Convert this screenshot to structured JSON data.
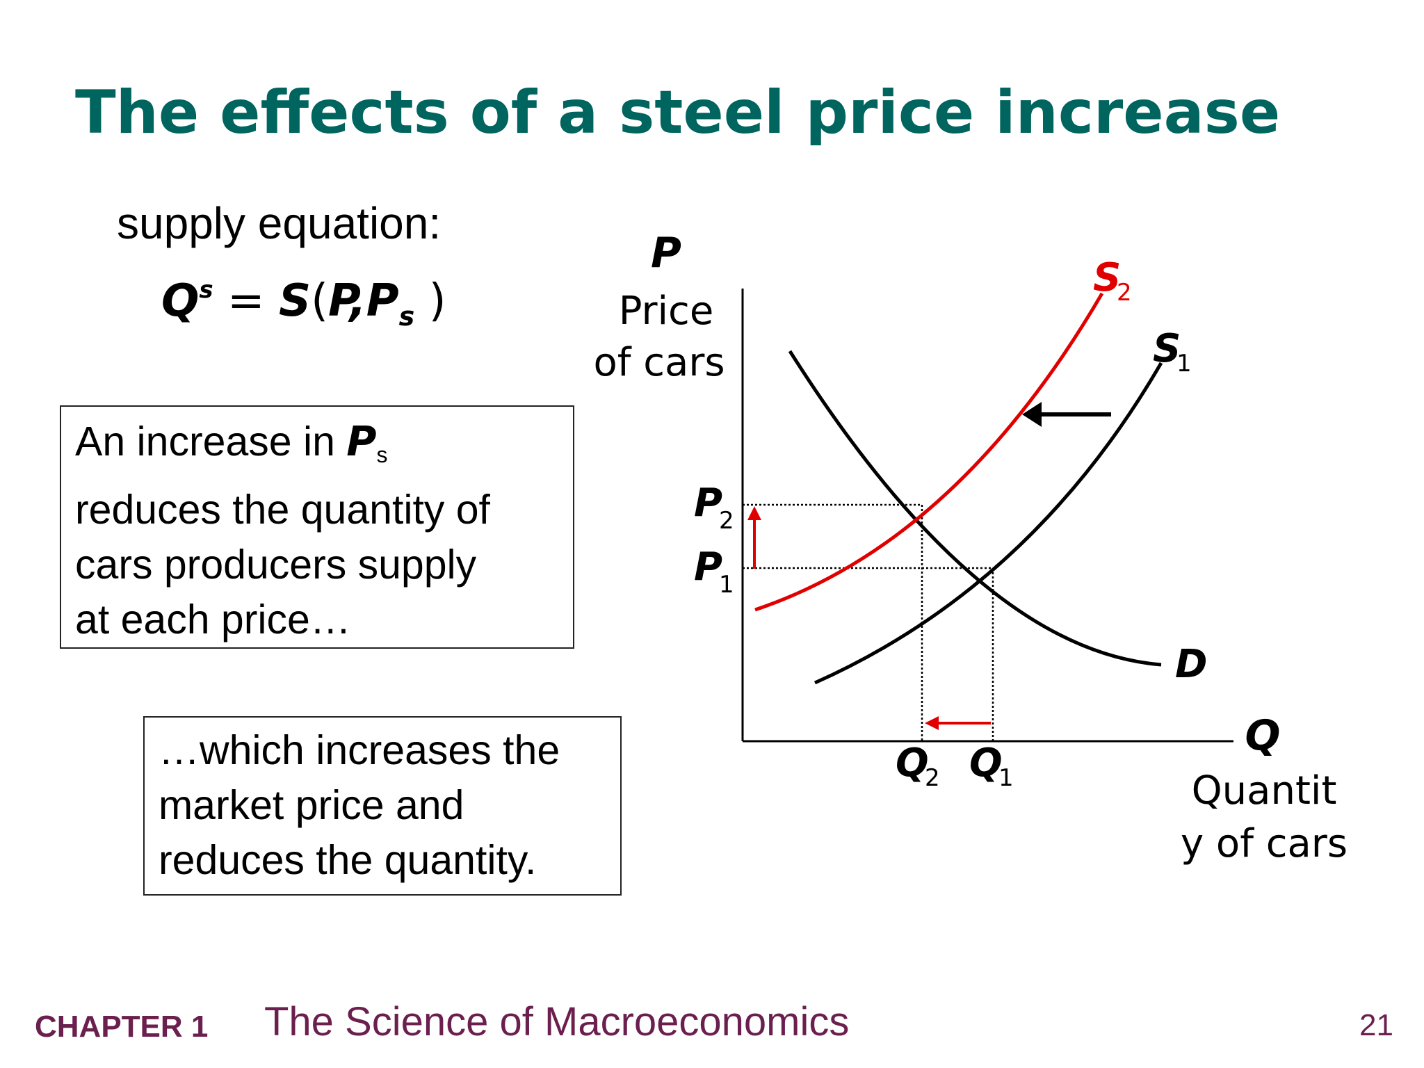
{
  "slide": {
    "title": "The effects of a steel price increase",
    "supply_label": "supply equation:",
    "equation": {
      "q": "Q",
      "q_sup": "s",
      "eq": " = ",
      "func": "S",
      "open": "(",
      "p": "P",
      "comma": ",",
      "ps": "P",
      "ps_sub": "s",
      "close": " )"
    },
    "box1": {
      "line1_prefix": "An increase in ",
      "var": "P",
      "var_sub": "s",
      "line2": "reduces the quantity of",
      "line3": "cars producers supply",
      "line4": "at each price…"
    },
    "box2": {
      "line1": "…which increases the",
      "line2": "market price and",
      "line3": "reduces the quantity."
    },
    "footer": {
      "chapter": "CHAPTER 1",
      "subject": "The Science of Macroeconomics",
      "page": "21"
    }
  },
  "chart_data": {
    "type": "line",
    "y_axis": {
      "symbol": "P",
      "label_line1": "Price",
      "label_line2": "of cars"
    },
    "x_axis": {
      "symbol": "Q",
      "label_line1": "Quantit",
      "label_line2": "y of cars"
    },
    "curves": [
      {
        "name": "D",
        "color": "#000000"
      },
      {
        "name": "S",
        "sub": "1",
        "color": "#000000"
      },
      {
        "name": "S",
        "sub": "2",
        "color": "#e00000"
      }
    ],
    "equilibria": [
      {
        "price": "P",
        "price_sub": "1",
        "quantity": "Q",
        "quantity_sub": "1"
      },
      {
        "price": "P",
        "price_sub": "2",
        "quantity": "Q",
        "quantity_sub": "2"
      }
    ],
    "shifts": [
      {
        "what": "supply",
        "direction": "left",
        "color": "#000000"
      },
      {
        "what": "price",
        "direction": "up",
        "color": "#e00000"
      },
      {
        "what": "quantity",
        "direction": "left",
        "color": "#e00000"
      }
    ]
  }
}
